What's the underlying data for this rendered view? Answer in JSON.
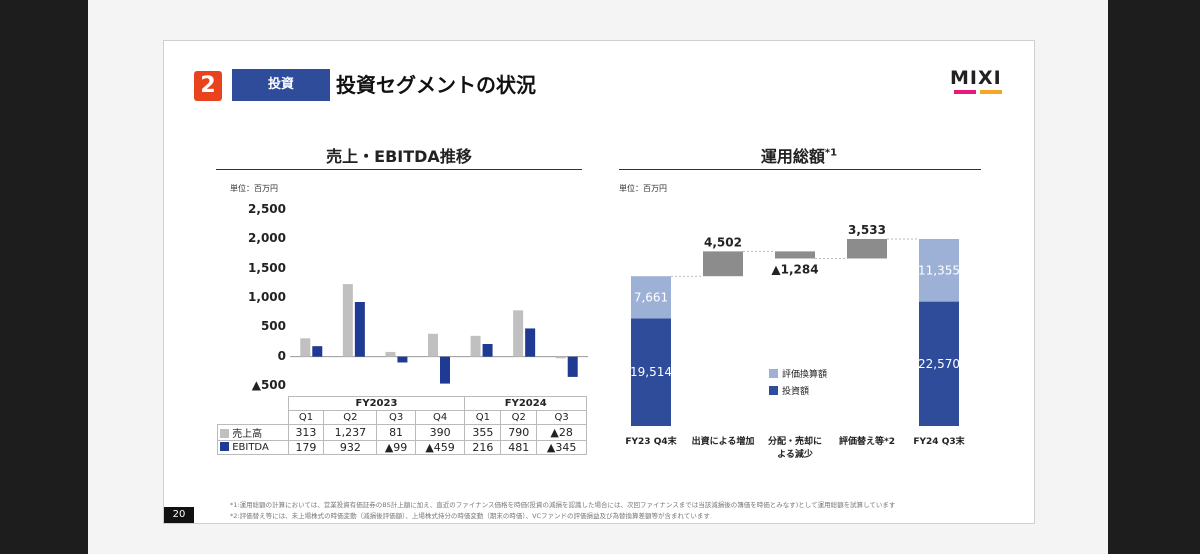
{
  "header": {
    "section_number": "2",
    "section_label": "投資",
    "title": "投資セグメントの状況",
    "logo_text": "MIXI"
  },
  "left_panel": {
    "title": "売上・EBITDA推移",
    "unit": "単位：百万円"
  },
  "right_panel": {
    "title": "運用総額",
    "title_sup": "*1",
    "unit": "単位：百万円"
  },
  "chart_data": [
    {
      "type": "bar",
      "title": "売上・EBITDA推移",
      "categories": [
        "Q1",
        "Q2",
        "Q3",
        "Q4",
        "Q1",
        "Q2",
        "Q3"
      ],
      "fiscal_groups": [
        {
          "label": "FY2023",
          "span": 4
        },
        {
          "label": "FY2024",
          "span": 3
        }
      ],
      "ylim": [
        -500,
        2500
      ],
      "yticks": [
        -500,
        0,
        500,
        1000,
        1500,
        2000,
        2500
      ],
      "ytick_labels": [
        "▲500",
        "0",
        "500",
        "1,000",
        "1,500",
        "2,000",
        "2,500"
      ],
      "series": [
        {
          "name": "売上高",
          "color": "#c0c0c0",
          "values": [
            313,
            1237,
            81,
            390,
            355,
            790,
            -28
          ],
          "labels": [
            "313",
            "1,237",
            "81",
            "390",
            "355",
            "790",
            "▲28"
          ]
        },
        {
          "name": "EBITDA",
          "color": "#1f3a93",
          "values": [
            179,
            932,
            -99,
            -459,
            216,
            481,
            -345
          ],
          "labels": [
            "179",
            "932",
            "▲99",
            "▲459",
            "216",
            "481",
            "▲345"
          ]
        }
      ]
    },
    {
      "type": "waterfall",
      "title": "運用総額",
      "ylim": [
        0,
        35000
      ],
      "categories": [
        "FY23 Q4末",
        "出資による増加",
        "分配・売却による減少",
        "評価替え等*2",
        "FY24 Q3末"
      ],
      "stacks": [
        {
          "category": "FY23 Q4末",
          "investment": 19514,
          "valuation": 7661,
          "investment_label": "19,514",
          "valuation_label": "7,661"
        },
        {
          "category": "FY24 Q3末",
          "investment": 22570,
          "valuation": 11355,
          "investment_label": "22,570",
          "valuation_label": "11,355"
        }
      ],
      "steps": [
        {
          "category": "出資による増加",
          "delta": 4502,
          "label": "4,502"
        },
        {
          "category": "分配・売却による減少",
          "delta": -1284,
          "label": "▲1,284"
        },
        {
          "category": "評価替え等*2",
          "delta": 3533,
          "label": "3,533"
        }
      ],
      "legend": [
        {
          "name": "評価換算額",
          "color": "#9db0d6"
        },
        {
          "name": "投資額",
          "color": "#2f4c9a"
        }
      ],
      "colors": {
        "investment": "#2f4c9a",
        "valuation": "#9db0d6",
        "step": "#8c8c8c"
      }
    }
  ],
  "footnotes": [
    "*1:運用総額の計算においては、営業投資有価証券のBS計上額に加え、直近のファイナンス価格を時価(投資の減損を認識した場合には、次回ファイナンスまでは当該減損後の簿価を時価とみなす)として運用総額を試算しています",
    "*2:評価替え等には、未上場株式の時価変動（減損後評価額）、上場株式持分の時価変動（期末の時価）、VCファンドの評価損益及び為替換算差額等が含まれています"
  ],
  "page_number": "20"
}
